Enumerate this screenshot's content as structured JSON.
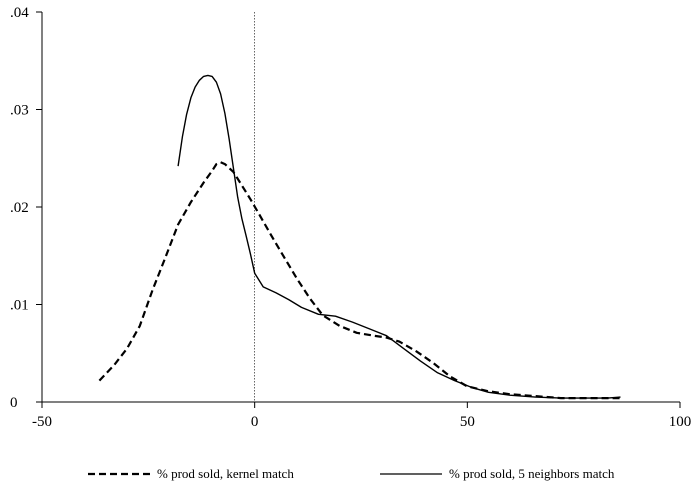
{
  "chart_data": {
    "type": "line",
    "title": "",
    "xlabel": "",
    "ylabel": "",
    "xlim": [
      -50,
      100
    ],
    "ylim": [
      0,
      0.04
    ],
    "x_ticks": [
      {
        "value": -50,
        "label": "-50"
      },
      {
        "value": 0,
        "label": "0"
      },
      {
        "value": 50,
        "label": "50"
      },
      {
        "value": 100,
        "label": "100"
      }
    ],
    "y_ticks": [
      {
        "value": 0,
        "label": "0"
      },
      {
        "value": 0.01,
        "label": ".01"
      },
      {
        "value": 0.02,
        "label": ".02"
      },
      {
        "value": 0.03,
        "label": ".03"
      },
      {
        "value": 0.04,
        "label": ".04"
      }
    ],
    "reference_line_x": 0,
    "grid": false,
    "legend_position": "bottom",
    "series": [
      {
        "name": "% prod sold,  kernel match",
        "style": "dashed",
        "color": "#000000",
        "points": [
          [
            -36.5,
            0.0022
          ],
          [
            -33,
            0.0038
          ],
          [
            -30,
            0.0055
          ],
          [
            -27,
            0.0078
          ],
          [
            -24,
            0.0115
          ],
          [
            -21,
            0.0148
          ],
          [
            -18,
            0.0182
          ],
          [
            -15,
            0.0205
          ],
          [
            -12,
            0.0225
          ],
          [
            -10,
            0.0237
          ],
          [
            -9,
            0.0244
          ],
          [
            -8,
            0.0246
          ],
          [
            -7,
            0.0244
          ],
          [
            -5,
            0.0236
          ],
          [
            -3,
            0.0222
          ],
          [
            -1,
            0.0208
          ],
          [
            1,
            0.0193
          ],
          [
            4,
            0.017
          ],
          [
            7,
            0.0148
          ],
          [
            10,
            0.0126
          ],
          [
            13,
            0.0106
          ],
          [
            16,
            0.0089
          ],
          [
            20,
            0.0078
          ],
          [
            24,
            0.0071
          ],
          [
            28,
            0.0068
          ],
          [
            31,
            0.0066
          ],
          [
            34,
            0.0062
          ],
          [
            38,
            0.0052
          ],
          [
            42,
            0.004
          ],
          [
            46,
            0.0026
          ],
          [
            50,
            0.0016
          ],
          [
            55,
            0.0011
          ],
          [
            60,
            0.0008
          ],
          [
            66,
            0.0006
          ],
          [
            72,
            0.0004
          ],
          [
            78,
            0.0004
          ],
          [
            83,
            0.0004
          ],
          [
            86,
            0.0004
          ]
        ]
      },
      {
        "name": "% prod sold, 5 neighbors match",
        "style": "solid",
        "color": "#000000",
        "points": [
          [
            -18,
            0.0242
          ],
          [
            -17,
            0.0272
          ],
          [
            -16,
            0.0295
          ],
          [
            -15,
            0.0312
          ],
          [
            -14,
            0.0323
          ],
          [
            -13,
            0.033
          ],
          [
            -12,
            0.0334
          ],
          [
            -11,
            0.0335
          ],
          [
            -10,
            0.0334
          ],
          [
            -9,
            0.0328
          ],
          [
            -8,
            0.0316
          ],
          [
            -7,
            0.0296
          ],
          [
            -6,
            0.027
          ],
          [
            -5,
            0.024
          ],
          [
            -4,
            0.021
          ],
          [
            -3,
            0.0188
          ],
          [
            -2,
            0.017
          ],
          [
            -1,
            0.0152
          ],
          [
            0,
            0.0132
          ],
          [
            2,
            0.0118
          ],
          [
            5,
            0.0112
          ],
          [
            8,
            0.0105
          ],
          [
            11,
            0.0097
          ],
          [
            15,
            0.009
          ],
          [
            19,
            0.0088
          ],
          [
            23,
            0.0082
          ],
          [
            27,
            0.0075
          ],
          [
            31,
            0.0068
          ],
          [
            35,
            0.0055
          ],
          [
            39,
            0.0042
          ],
          [
            43,
            0.003
          ],
          [
            47,
            0.0022
          ],
          [
            51,
            0.0015
          ],
          [
            55,
            0.001
          ],
          [
            60,
            0.0007
          ],
          [
            66,
            0.0005
          ],
          [
            72,
            0.0004
          ],
          [
            78,
            0.0004
          ],
          [
            83,
            0.0004
          ],
          [
            86,
            0.0005
          ]
        ]
      }
    ],
    "legend": [
      {
        "label": "% prod sold,  kernel match",
        "style": "dashed"
      },
      {
        "label": "% prod sold, 5 neighbors match",
        "style": "solid"
      }
    ]
  }
}
